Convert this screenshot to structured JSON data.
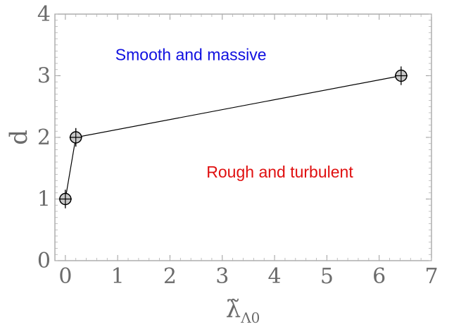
{
  "chart_data": {
    "type": "line",
    "title": "",
    "xlabel": "λ̃",
    "xlabel_subscript": "Λ0",
    "ylabel": "d",
    "xlim": [
      -0.2,
      7
    ],
    "ylim": [
      0,
      4
    ],
    "xticks": [
      "0",
      "1",
      "2",
      "3",
      "4",
      "5",
      "6",
      "7"
    ],
    "yticks": [
      "0",
      "1",
      "2",
      "3",
      "4"
    ],
    "grid": false,
    "legend": "none",
    "series": [
      {
        "points": [
          {
            "x": 0.0,
            "y": 1.0
          },
          {
            "x": 0.2,
            "y": 2.0
          },
          {
            "x": 6.42,
            "y": 3.0
          }
        ],
        "xerr": 0.12,
        "yerr": 0.15,
        "marker_fill": "#c8c8c8",
        "color": "#000000"
      }
    ],
    "annotations": [
      {
        "text": "Smooth and massive",
        "x": 2.4,
        "y": 3.25,
        "color": "#1010e0"
      },
      {
        "text": "Rough and turbulent",
        "x": 4.1,
        "y": 1.35,
        "color": "#e01010"
      }
    ]
  }
}
